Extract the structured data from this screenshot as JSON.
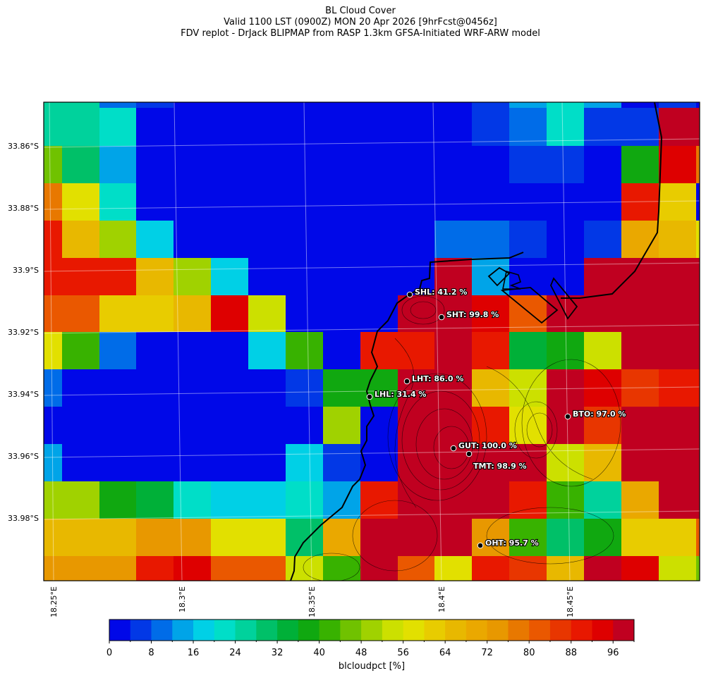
{
  "header": {
    "title": "BL Cloud Cover",
    "valid_line": "Valid 1100 LST (0900Z) MON 20 Apr 2026 [9hrFcst@0456z]",
    "source_line": "FDV replot - DrJack BLIPMAP from RASP 1.3km GFSA-Initiated WRF-ARW model"
  },
  "map": {
    "lat_labels": [
      "33.86°S",
      "33.88°S",
      "33.9°S",
      "33.92°S",
      "33.94°S",
      "33.96°S",
      "33.98°S"
    ],
    "lon_labels": [
      "18.25°E",
      "18.3°E",
      "18.35°E",
      "18.4°E",
      "18.45°E"
    ],
    "grid_values_pct": [
      [
        26,
        26,
        10,
        6,
        2,
        2,
        2,
        2,
        2,
        2,
        2,
        2,
        6,
        14,
        22,
        14,
        2,
        6,
        2
      ],
      [
        26,
        26,
        22,
        2,
        2,
        2,
        2,
        2,
        2,
        2,
        2,
        2,
        6,
        10,
        22,
        6,
        6,
        98,
        98
      ],
      [
        46,
        30,
        14,
        2,
        2,
        2,
        2,
        2,
        2,
        2,
        2,
        2,
        2,
        6,
        6,
        2,
        38,
        94,
        78
      ],
      [
        78,
        58,
        22,
        2,
        2,
        2,
        2,
        2,
        2,
        2,
        2,
        2,
        2,
        2,
        2,
        2,
        90,
        62,
        2
      ],
      [
        90,
        66,
        50,
        18,
        2,
        2,
        2,
        2,
        2,
        2,
        2,
        10,
        10,
        6,
        2,
        6,
        70,
        66,
        58
      ],
      [
        90,
        90,
        90,
        66,
        50,
        18,
        2,
        2,
        2,
        2,
        2,
        98,
        14,
        2,
        2,
        98,
        98,
        98,
        98
      ],
      [
        82,
        82,
        62,
        62,
        66,
        94,
        54,
        2,
        2,
        2,
        98,
        98,
        94,
        82,
        98,
        98,
        98,
        98,
        98
      ],
      [
        58,
        42,
        10,
        2,
        2,
        2,
        18,
        42,
        2,
        90,
        90,
        98,
        90,
        34,
        38,
        54,
        98,
        98,
        98
      ],
      [
        10,
        2,
        2,
        2,
        2,
        2,
        2,
        6,
        38,
        38,
        98,
        98,
        66,
        54,
        98,
        94,
        86,
        90,
        90
      ],
      [
        2,
        2,
        2,
        2,
        2,
        2,
        2,
        2,
        50,
        2,
        98,
        98,
        90,
        58,
        98,
        86,
        98,
        98,
        98
      ],
      [
        14,
        2,
        2,
        2,
        2,
        2,
        2,
        18,
        6,
        2,
        98,
        98,
        98,
        98,
        54,
        66,
        98,
        98,
        98
      ],
      [
        50,
        50,
        38,
        34,
        22,
        18,
        18,
        22,
        14,
        90,
        98,
        98,
        98,
        90,
        42,
        26,
        70,
        98,
        98
      ],
      [
        66,
        66,
        66,
        74,
        74,
        58,
        58,
        30,
        70,
        98,
        98,
        98,
        74,
        42,
        30,
        38,
        62,
        62,
        82
      ],
      [
        74,
        74,
        74,
        90,
        94,
        82,
        82,
        54,
        42,
        98,
        82,
        58,
        90,
        86,
        66,
        98,
        94,
        54,
        46
      ]
    ],
    "stations": [
      {
        "code": "SHL",
        "value": "41.2"
      },
      {
        "code": "SHT",
        "value": "99.8"
      },
      {
        "code": "LHT",
        "value": "86.0"
      },
      {
        "code": "LHL",
        "value": "31.4"
      },
      {
        "code": "BTO",
        "value": "97.0"
      },
      {
        "code": "GUT",
        "value": "100.0"
      },
      {
        "code": "TMT",
        "value": "98.9"
      },
      {
        "code": "OHT",
        "value": "95.7"
      }
    ],
    "value_unit": "%"
  },
  "colorbar": {
    "label": "blcloudpct [%]",
    "range": [
      0,
      100
    ],
    "step": 4,
    "tick_labels": [
      "0",
      "8",
      "16",
      "24",
      "32",
      "40",
      "48",
      "56",
      "64",
      "72",
      "80",
      "88",
      "96"
    ],
    "colors": [
      "#0008e8",
      "#0238e6",
      "#006ce8",
      "#00a4e8",
      "#00d0e6",
      "#00dec8",
      "#00d29c",
      "#00c068",
      "#00b038",
      "#10a810",
      "#38b200",
      "#70c200",
      "#a0d200",
      "#cce000",
      "#e2e000",
      "#e8cc00",
      "#e8b800",
      "#eaa800",
      "#e89800",
      "#e87800",
      "#ea5800",
      "#e83600",
      "#e81800",
      "#de0000",
      "#c00020"
    ]
  }
}
